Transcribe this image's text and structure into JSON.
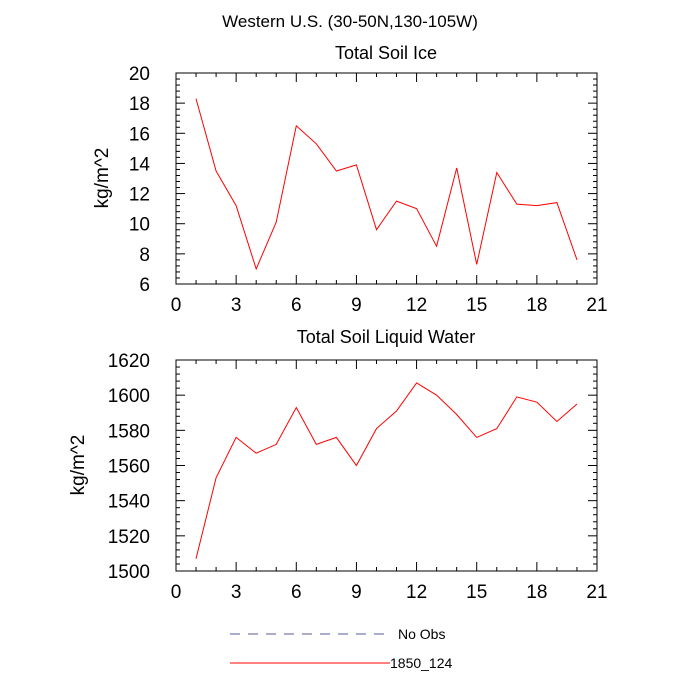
{
  "figure_title": "Western U.S. (30-50N,130-105W)",
  "chart_data": [
    {
      "type": "line",
      "title": "Total Soil Ice",
      "xlabel": "",
      "ylabel": "kg/m^2",
      "xlim": [
        0,
        21
      ],
      "ylim": [
        6,
        20
      ],
      "xticks": [
        0,
        3,
        6,
        9,
        12,
        15,
        18,
        21
      ],
      "yticks": [
        6,
        8,
        10,
        12,
        14,
        16,
        18,
        20
      ],
      "grid": false,
      "series": [
        {
          "name": "1850_124",
          "color": "#ff0000",
          "x": [
            1,
            2,
            3,
            4,
            5,
            6,
            7,
            8,
            9,
            10,
            11,
            12,
            13,
            14,
            15,
            16,
            17,
            18,
            19,
            20
          ],
          "y": [
            18.3,
            13.5,
            11.2,
            7.0,
            10.1,
            16.5,
            15.3,
            13.5,
            13.9,
            9.6,
            11.5,
            11.0,
            8.5,
            13.7,
            7.3,
            13.4,
            11.3,
            11.2,
            11.4,
            7.6
          ]
        }
      ]
    },
    {
      "type": "line",
      "title": "Total Soil Liquid Water",
      "xlabel": "",
      "ylabel": "kg/m^2",
      "xlim": [
        0,
        21
      ],
      "ylim": [
        1500,
        1620
      ],
      "xticks": [
        0,
        3,
        6,
        9,
        12,
        15,
        18,
        21
      ],
      "yticks": [
        1500,
        1520,
        1540,
        1560,
        1580,
        1600,
        1620
      ],
      "grid": false,
      "series": [
        {
          "name": "1850_124",
          "color": "#ff0000",
          "x": [
            1,
            2,
            3,
            4,
            5,
            6,
            7,
            8,
            9,
            10,
            11,
            12,
            13,
            14,
            15,
            16,
            17,
            18,
            19,
            20
          ],
          "y": [
            1507,
            1553,
            1576,
            1567,
            1572,
            1593,
            1572,
            1576,
            1560,
            1581,
            1591,
            1607,
            1600,
            1589,
            1576,
            1581,
            1599,
            1596,
            1585,
            1595
          ]
        }
      ]
    }
  ],
  "legend": {
    "placement": "bottom-center",
    "items": [
      {
        "label": "No Obs",
        "style": "dashed",
        "color": "#5a5a9c"
      },
      {
        "label": "1850_124",
        "style": "solid",
        "color": "#ff0000"
      }
    ]
  }
}
